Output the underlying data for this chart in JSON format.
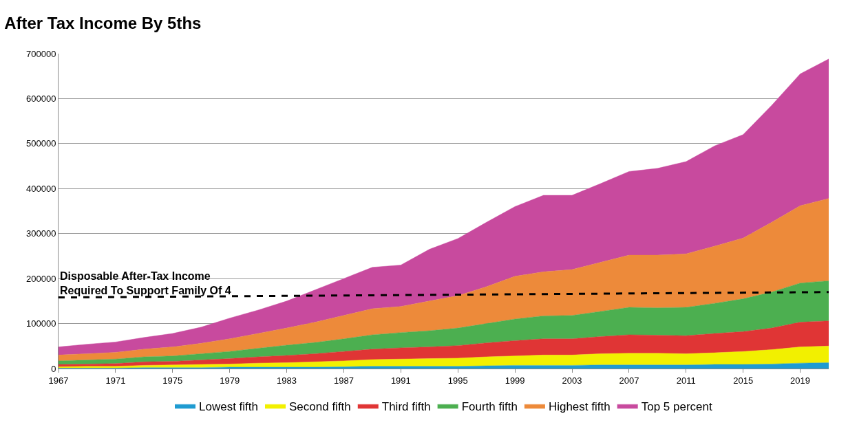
{
  "chart_data": {
    "type": "area",
    "title": "After Tax Income By 5ths",
    "x": [
      1967,
      1969,
      1971,
      1973,
      1975,
      1977,
      1979,
      1981,
      1983,
      1985,
      1987,
      1989,
      1991,
      1993,
      1995,
      1997,
      1999,
      2001,
      2003,
      2005,
      2007,
      2009,
      2011,
      2013,
      2015,
      2017,
      2019,
      2021
    ],
    "stacked": true,
    "series": [
      {
        "name": "Lowest fifth",
        "color": "#1f9bd1",
        "values": [
          1000,
          1000,
          1000,
          2000,
          2000,
          2000,
          3000,
          3000,
          3000,
          3000,
          4000,
          5000,
          5000,
          5000,
          5000,
          6000,
          7000,
          7000,
          7000,
          8000,
          8000,
          8000,
          8000,
          9000,
          9000,
          10000,
          12000,
          13000
        ]
      },
      {
        "name": "Second fifth",
        "color": "#f2f000",
        "values": [
          3000,
          4000,
          4000,
          5000,
          6000,
          7000,
          7000,
          9000,
          10000,
          12000,
          13000,
          15000,
          16000,
          17000,
          18000,
          20000,
          21000,
          23000,
          23000,
          25000,
          26000,
          26000,
          25000,
          26000,
          29000,
          32000,
          36000,
          37000
        ]
      },
      {
        "name": "Third fifth",
        "color": "#e03535",
        "values": [
          5000,
          5000,
          6000,
          8000,
          8000,
          10000,
          12000,
          14000,
          16000,
          18000,
          21000,
          23000,
          25000,
          26000,
          28000,
          31000,
          34000,
          36000,
          36000,
          38000,
          41000,
          40000,
          40000,
          43000,
          44000,
          48000,
          55000,
          56000
        ]
      },
      {
        "name": "Fourth fifth",
        "color": "#4caf50",
        "values": [
          8000,
          9000,
          10000,
          11000,
          12000,
          14000,
          16000,
          19000,
          23000,
          25000,
          28000,
          32000,
          34000,
          36000,
          39000,
          43000,
          48000,
          51000,
          52000,
          56000,
          61000,
          61000,
          63000,
          67000,
          73000,
          80000,
          87000,
          89000
        ]
      },
      {
        "name": "Highest fifth",
        "color": "#ed8a3a",
        "values": [
          13000,
          14000,
          15000,
          17000,
          20000,
          23000,
          28000,
          33000,
          38000,
          45000,
          52000,
          58000,
          58000,
          66000,
          72000,
          82000,
          95000,
          98000,
          102000,
          109000,
          116000,
          117000,
          119000,
          127000,
          135000,
          155000,
          172000,
          183000
        ]
      },
      {
        "name": "Top 5 percent",
        "color": "#c84a9e",
        "values": [
          18000,
          21000,
          23000,
          26000,
          30000,
          36000,
          46000,
          52000,
          60000,
          72000,
          82000,
          92000,
          92000,
          115000,
          127000,
          143000,
          155000,
          170000,
          165000,
          175000,
          186000,
          193000,
          205000,
          223000,
          230000,
          260000,
          293000,
          310000
        ]
      },
      {
        "type": "line",
        "x": [
          1967,
          2021
        ],
        "color": "#000000",
        "line_style": "dashed",
        "values": [
          158000,
          170000
        ]
      }
    ],
    "annotations": [
      {
        "text": "Disposable After-Tax Income\nRequired To Support Family Of 4",
        "x": 1967,
        "y": 158000
      }
    ],
    "xlim": [
      1967,
      2021
    ],
    "xticks": [
      1967,
      1971,
      1975,
      1979,
      1983,
      1987,
      1991,
      1995,
      1999,
      2003,
      2007,
      2011,
      2015,
      2019
    ],
    "ylim": [
      0,
      700000
    ],
    "yticks": [
      0,
      100000,
      200000,
      300000,
      400000,
      500000,
      600000,
      700000
    ],
    "grid": "y",
    "legend": "bottom"
  }
}
